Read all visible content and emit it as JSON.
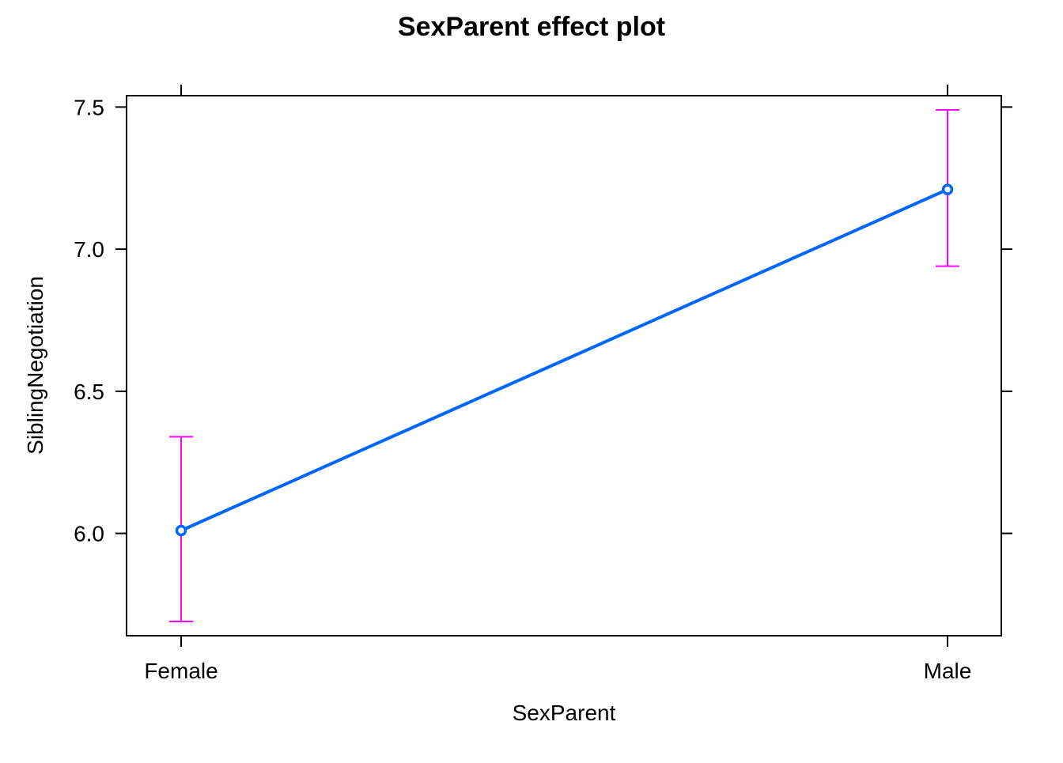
{
  "chart_data": {
    "type": "line",
    "title": "SexParent effect plot",
    "xlabel": "SexParent",
    "ylabel": "SiblingNegotiation",
    "categories": [
      "Female",
      "Male"
    ],
    "series": [
      {
        "values": [
          6.01,
          7.21
        ],
        "lower": [
          5.69,
          6.94
        ],
        "upper": [
          6.34,
          7.49
        ]
      }
    ],
    "ylim": [
      5.64,
      7.54
    ],
    "yticks": [
      6.0,
      6.5,
      7.0,
      7.5
    ],
    "ytick_labels": [
      "6.0",
      "6.5",
      "7.0",
      "7.5"
    ],
    "grid": false,
    "legend": "none",
    "colors": {
      "line": "#0066ff",
      "error_bars": "#ff00ff",
      "axis": "#000000"
    }
  }
}
